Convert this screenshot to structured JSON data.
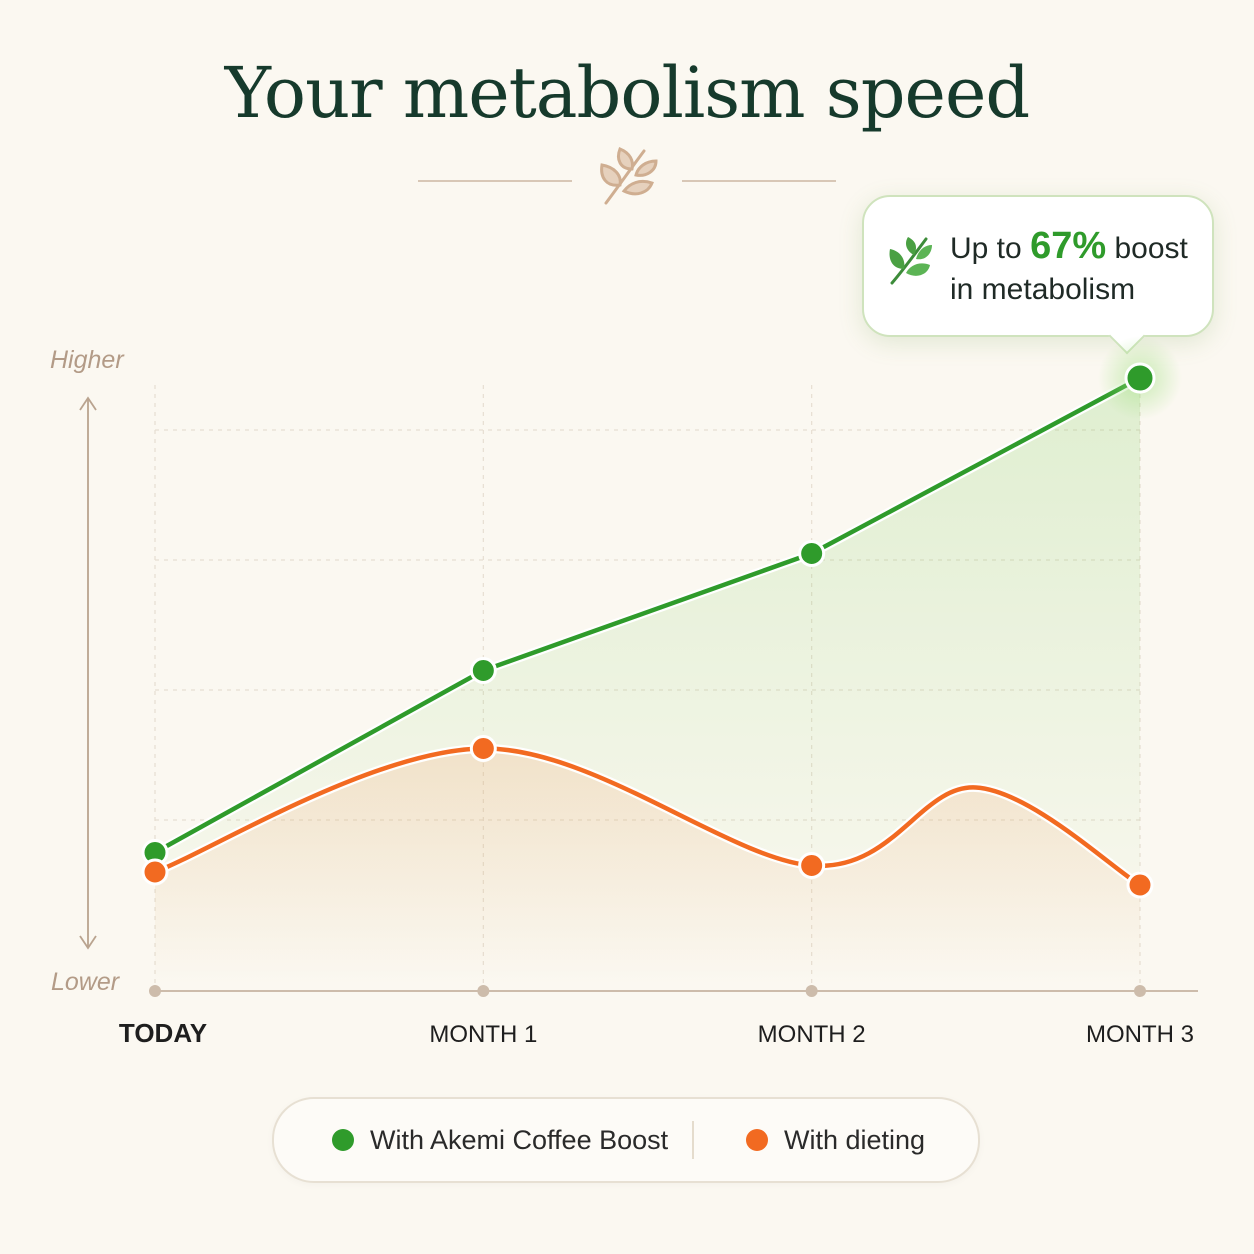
{
  "title": "Your metabolism speed",
  "callout": {
    "prefix": "Up to",
    "highlight": "67%",
    "suffix": "boost",
    "line2": "in metabolism"
  },
  "y_axis": {
    "top_label": "Higher",
    "bottom_label": "Lower"
  },
  "legend": [
    {
      "label": "With Akemi Coffee Boost",
      "color": "#2f9b2b"
    },
    {
      "label": "With dieting",
      "color": "#f26a21"
    }
  ],
  "colors": {
    "green": "#2f9b2b",
    "orange": "#f26a21",
    "axis": "#c8b5a3",
    "title": "#163a2c",
    "background": "#fbf8f1"
  },
  "icons": {
    "divider": "wheat-icon",
    "callout": "leaf-icon"
  },
  "chart_data": {
    "type": "line",
    "title": "Your metabolism speed",
    "categories": [
      "TODAY",
      "MONTH 1",
      "MONTH 2",
      "MONTH 3"
    ],
    "ylabel": "",
    "y_top_label": "Higher",
    "y_bottom_label": "Lower",
    "ylim": [
      0,
      100
    ],
    "grid": true,
    "legend_position": "bottom",
    "series": [
      {
        "name": "With Akemi Coffee Boost",
        "color": "#2f9b2b",
        "values": [
          15,
          43,
          61,
          88
        ],
        "smooth": false
      },
      {
        "name": "With dieting",
        "color": "#f26a21",
        "values": [
          12,
          31,
          13,
          10
        ],
        "smooth": true,
        "extra_peak": {
          "x": 2.5,
          "y": 25
        }
      }
    ],
    "annotation": "Up to 67% boost in metabolism"
  }
}
